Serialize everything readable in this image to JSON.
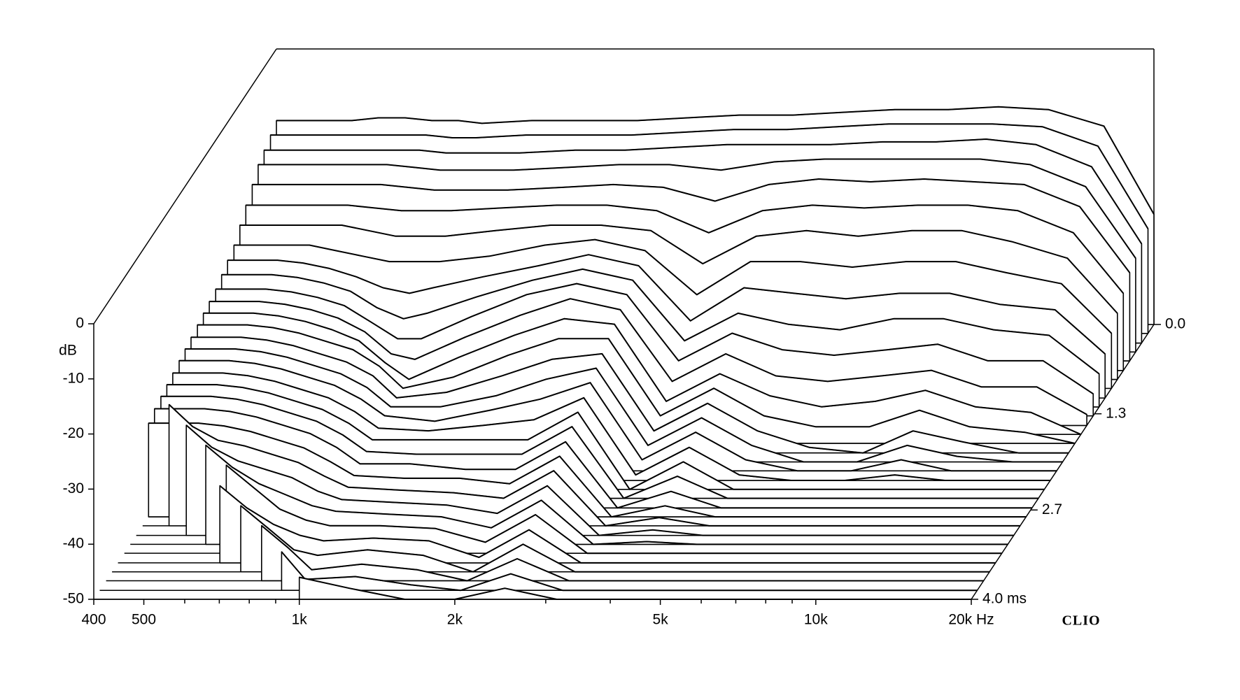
{
  "chart_data": {
    "type": "waterfall",
    "ylabel": "dB",
    "watermark": "CLIO",
    "x": [
      400,
      450,
      500,
      560,
      630,
      710,
      800,
      900,
      1000,
      1250,
      1600,
      2000,
      2500,
      3150,
      4000,
      5000,
      6300,
      8000,
      10000,
      12500,
      16000,
      20000
    ],
    "xscale": "log",
    "xlim": [
      400,
      20000
    ],
    "xticks": [
      400,
      500,
      {
        "value": 1000,
        "label": "1k"
      },
      {
        "value": 2000,
        "label": "2k"
      },
      {
        "value": 5000,
        "label": "5k"
      },
      {
        "value": 10000,
        "label": "10k"
      },
      {
        "value": 20000,
        "label": "20k Hz"
      }
    ],
    "xminorticks": [
      600,
      700,
      800,
      900,
      3000,
      4000,
      6000,
      7000,
      8000,
      9000
    ],
    "ylim": [
      -50,
      0
    ],
    "yticks": [
      0,
      -10,
      -20,
      -30,
      -40,
      -50
    ],
    "zlim": [
      0,
      4
    ],
    "zticks": [
      {
        "value": 0,
        "label": "0.0"
      },
      1.3,
      2.7,
      {
        "value": 4,
        "label": "4.0 ms"
      }
    ],
    "z": [
      0,
      0.13,
      0.27,
      0.4,
      0.53,
      0.67,
      0.8,
      0.93,
      1.07,
      1.2,
      1.33,
      1.47,
      1.6,
      1.73,
      1.87,
      2,
      2.13,
      2.27,
      2.4,
      2.53,
      2.67,
      2.8,
      2.93,
      3.07,
      3.2,
      3.33,
      3.47,
      3.6,
      3.73,
      3.87,
      4
    ],
    "line_color": "#000000",
    "fill_color": "#ffffff",
    "series": [
      {
        "values": [
          -13,
          -13,
          -13,
          -13,
          -12.5,
          -12.5,
          -13,
          -13,
          -13.5,
          -13,
          -13,
          -13,
          -12.5,
          -12,
          -12,
          -11.5,
          -11,
          -11,
          -10.5,
          -11,
          -14,
          -30
        ]
      },
      {
        "values": [
          -14,
          -14,
          -14,
          -14,
          -14,
          -14,
          -14,
          -14.5,
          -14.5,
          -14,
          -14,
          -14,
          -13.5,
          -13,
          -13,
          -12.5,
          -12,
          -12,
          -12,
          -12.5,
          -16,
          -31
        ]
      },
      {
        "values": [
          -15,
          -15,
          -15,
          -15,
          -15,
          -15,
          -15,
          -15.5,
          -15.5,
          -15.5,
          -15,
          -15,
          -14.5,
          -14,
          -14,
          -14,
          -13.5,
          -13.5,
          -13,
          -14,
          -18,
          -32
        ]
      },
      {
        "values": [
          -16,
          -16,
          -16,
          -16,
          -16,
          -16,
          -16.5,
          -17,
          -17,
          -17,
          -16.5,
          -16,
          -16,
          -17,
          -15.5,
          -15,
          -15,
          -15,
          -15,
          -16,
          -20,
          -33
        ]
      },
      {
        "values": [
          -18,
          -18,
          -18,
          -18,
          -18,
          -18,
          -18.5,
          -19,
          -19,
          -19,
          -18.5,
          -18,
          -18.5,
          -21,
          -18,
          -17,
          -17.5,
          -17,
          -17.5,
          -18,
          -22,
          -34
        ]
      },
      {
        "values": [
          -20,
          -20,
          -20,
          -20,
          -20,
          -20.5,
          -21,
          -21,
          -21,
          -20.5,
          -20,
          -20,
          -21,
          -25,
          -21,
          -20,
          -20.5,
          -20,
          -20,
          -21,
          -25,
          -36
        ]
      },
      {
        "values": [
          -22,
          -22,
          -22,
          -22,
          -22,
          -23,
          -24,
          -24,
          -24,
          -23,
          -22,
          -22,
          -23,
          -29,
          -24,
          -23,
          -24,
          -23,
          -23,
          -25,
          -28,
          -38
        ]
      },
      {
        "values": [
          -24,
          -24,
          -24,
          -24,
          -25,
          -26,
          -27,
          -27,
          -27,
          -26,
          -24,
          -23,
          -25,
          -33,
          -27,
          -27,
          -28,
          -27,
          -27,
          -29,
          -31,
          -40
        ]
      },
      {
        "values": [
          -25,
          -25,
          -25,
          -25.5,
          -26.5,
          -28,
          -30,
          -31,
          -30,
          -28,
          -26,
          -24,
          -26,
          -36,
          -30,
          -31,
          -32,
          -31,
          -31,
          -33,
          -34,
          -42
        ]
      },
      {
        "values": [
          -26,
          -26,
          -26,
          -26.5,
          -27.5,
          -29,
          -32,
          -34,
          -33,
          -30,
          -27,
          -25,
          -27,
          -38,
          -33,
          -35,
          -36,
          -34,
          -34,
          -36,
          -37,
          -44
        ]
      },
      {
        "values": [
          -27,
          -27,
          -27,
          -27.5,
          -28.5,
          -30,
          -33,
          -36,
          -36,
          -32,
          -28,
          -26,
          -28,
          -40,
          -35,
          -38,
          -39,
          -38,
          -37,
          -40,
          -40,
          -46
        ]
      },
      {
        "values": [
          -27.5,
          -27.5,
          -27.5,
          -28,
          -29,
          -30.5,
          -33,
          -37,
          -38,
          -34,
          -30,
          -27,
          -29,
          -42,
          -37,
          -41,
          -42,
          -41,
          -40,
          -43,
          -43,
          -48
        ]
      },
      {
        "values": [
          -28,
          -28,
          -28,
          -28.5,
          -29.5,
          -31,
          -33,
          -37,
          -40,
          -36,
          -32,
          -29,
          -30,
          -44,
          -39,
          -43,
          -45,
          -44,
          -42,
          -45,
          -46,
          -50
        ]
      },
      {
        "values": [
          -28.5,
          -28.5,
          -28.5,
          -29,
          -30,
          -31.5,
          -33,
          -36,
          -40,
          -38,
          -34,
          -31,
          -31,
          -45,
          -40,
          -45,
          -47,
          -47,
          -44,
          -47,
          -48,
          -50
        ]
      },
      {
        "values": [
          -29,
          -29,
          -29,
          -29.5,
          -30.5,
          -32,
          -33.5,
          -36,
          -40,
          -39,
          -36,
          -33,
          -32,
          -46,
          -41,
          -46,
          -49,
          -50,
          -46,
          -48,
          -50,
          -50
        ]
      },
      {
        "values": [
          -29.5,
          -29.5,
          -29.5,
          -30,
          -31,
          -32.5,
          -34,
          -36.5,
          -40,
          -40,
          -38,
          -35,
          -33,
          -47,
          -42,
          -47,
          -50,
          -50,
          -47,
          -49,
          -50,
          -50
        ]
      },
      {
        "values": [
          -30,
          -30,
          -30,
          -30.5,
          -31.5,
          -33,
          -34.5,
          -37,
          -40,
          -41,
          -39,
          -37,
          -34,
          -48,
          -43,
          -48,
          -50,
          -50,
          -48,
          -50,
          -50,
          -50
        ]
      },
      {
        "values": [
          -30.5,
          -30.5,
          -30.5,
          -31,
          -32,
          -33.5,
          -35,
          -37.5,
          -40.5,
          -41,
          -40,
          -39,
          -35,
          -49,
          -44,
          -49,
          -50,
          -50,
          -49,
          -50,
          -50,
          -50
        ]
      },
      {
        "values": [
          -31,
          -31,
          -31,
          -31.5,
          -32.5,
          -34,
          -35.5,
          -38,
          -41,
          -41,
          -41,
          -41,
          -36,
          -50,
          -45,
          -50,
          -50,
          -50,
          -50,
          -50,
          -50,
          -50
        ]
      },
      {
        "values": [
          -31.5,
          -31.5,
          -31.5,
          -32,
          -33,
          -34.5,
          -36,
          -38.5,
          -41.5,
          -42,
          -42,
          -42,
          -37,
          -50,
          -46,
          -50,
          -50,
          -50,
          -50,
          -50,
          -50,
          -50
        ]
      },
      {
        "values": [
          -32,
          -32,
          -32,
          -32.5,
          -33.5,
          -35,
          -36.5,
          -39,
          -42,
          -42,
          -43,
          -43,
          -38,
          -50,
          -47,
          -50,
          -50,
          -50,
          -50,
          -50,
          -50,
          -50
        ]
      },
      {
        "values": [
          -33,
          -33,
          -33,
          -33.5,
          -34.5,
          -36,
          -37.5,
          -40,
          -42.5,
          -43,
          -43,
          -44,
          -39,
          -50,
          -48,
          -50,
          -50,
          -50,
          -50,
          -50,
          -50,
          -50
        ]
      },
      {
        "values": [
          null,
          -28,
          -32,
          -34.5,
          -35.5,
          -37,
          -38.5,
          -41,
          -43,
          -43.5,
          -44,
          -45,
          -40,
          -50,
          -48.5,
          -50,
          -50,
          -50,
          -50,
          -50,
          -50,
          -50
        ]
      },
      {
        "values": [
          null,
          null,
          -30,
          -34,
          -36.5,
          -38,
          -39.5,
          -42,
          -43.5,
          -44,
          -44.5,
          -46,
          -41,
          -50,
          -49,
          -50,
          -50,
          -50,
          -50,
          -50,
          -50,
          -50
        ]
      },
      {
        "values": [
          null,
          null,
          null,
          -32,
          -36,
          -39,
          -41,
          -43,
          -44,
          -44.5,
          -45,
          -47,
          -42,
          -50,
          -49.5,
          -50,
          -50,
          -50,
          -50,
          -50,
          -50,
          -50
        ]
      },
      {
        "values": [
          null,
          null,
          null,
          null,
          -34,
          -38,
          -42,
          -44,
          -45,
          -45,
          -45.5,
          -48,
          -43,
          -50,
          -50,
          -50,
          -50,
          -50,
          -50,
          -50,
          -50,
          -50
        ]
      },
      {
        "values": [
          null,
          null,
          null,
          null,
          -36,
          -40,
          -43,
          -45,
          -46,
          -45.5,
          -46,
          -49,
          -44,
          -50,
          -50,
          -50,
          -50,
          -50,
          -50,
          -50,
          -50,
          -50
        ]
      },
      {
        "values": [
          null,
          null,
          null,
          null,
          null,
          -38,
          -42,
          -46,
          -47,
          -46,
          -47,
          -50,
          -45,
          -50,
          -50,
          -50,
          -50,
          -50,
          -50,
          -50,
          -50,
          -50
        ]
      },
      {
        "values": [
          null,
          null,
          null,
          null,
          null,
          null,
          -40,
          -44,
          -48,
          -47,
          -48,
          -50,
          -46,
          -50,
          -50,
          -50,
          -50,
          -50,
          -50,
          -50,
          -50,
          -50
        ]
      },
      {
        "values": [
          null,
          null,
          null,
          null,
          null,
          null,
          null,
          -43,
          -48,
          -47.5,
          -49,
          -50,
          -47,
          -50,
          -50,
          -50,
          -50,
          -50,
          -50,
          -50,
          -50,
          -50
        ]
      },
      {
        "values": [
          null,
          null,
          null,
          null,
          null,
          null,
          null,
          null,
          -46,
          -48,
          -50,
          -50,
          -48,
          -50,
          -50,
          -50,
          -50,
          -50,
          -50,
          -50,
          -50,
          -50
        ]
      }
    ]
  }
}
